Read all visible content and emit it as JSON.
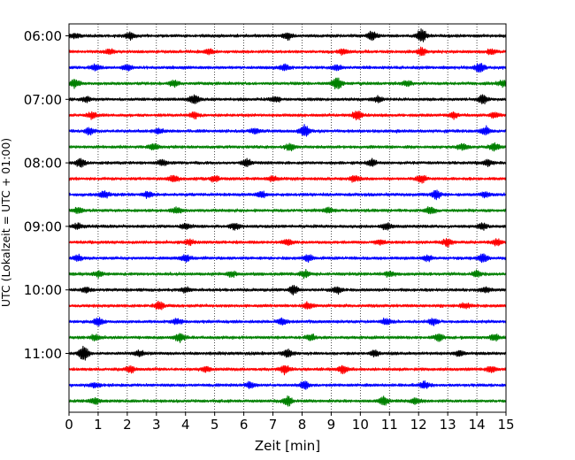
{
  "chart_data": {
    "type": "line",
    "title": "",
    "xlabel": "Zeit  [min]",
    "ylabel": "UTC (Lokalzeit = UTC + 01:00)",
    "xlim": [
      0,
      15
    ],
    "xticks": [
      0,
      1,
      2,
      3,
      4,
      5,
      6,
      7,
      8,
      9,
      10,
      11,
      12,
      13,
      14,
      15
    ],
    "x_grid": "dotted",
    "y_tick_labels": [
      "06:00",
      "07:00",
      "08:00",
      "09:00",
      "10:00",
      "11:00"
    ],
    "trace_interval_min": 15,
    "trace_colors": [
      "#000000",
      "#ff0000",
      "#0000ff",
      "#008000"
    ],
    "traces": [
      {
        "start": "06:00",
        "bursts": [
          [
            0.2,
            0.5
          ],
          [
            2.1,
            0.6
          ],
          [
            7.5,
            0.7
          ],
          [
            10.4,
            0.9
          ],
          [
            12.1,
            1.4
          ]
        ]
      },
      {
        "start": "06:15",
        "bursts": [
          [
            1.4,
            0.5
          ],
          [
            4.8,
            0.5
          ],
          [
            9.4,
            0.6
          ],
          [
            12.1,
            0.7
          ],
          [
            14.5,
            0.5
          ]
        ]
      },
      {
        "start": "06:30",
        "bursts": [
          [
            0.9,
            0.6
          ],
          [
            2.0,
            0.6
          ],
          [
            7.4,
            0.6
          ],
          [
            9.2,
            0.5
          ],
          [
            14.1,
            0.9
          ]
        ]
      },
      {
        "start": "06:45",
        "bursts": [
          [
            0.2,
            0.8
          ],
          [
            3.6,
            0.6
          ],
          [
            9.2,
            1.2
          ],
          [
            11.6,
            0.5
          ],
          [
            14.9,
            0.6
          ]
        ]
      },
      {
        "start": "07:00",
        "bursts": [
          [
            0.6,
            0.5
          ],
          [
            4.3,
            0.8
          ],
          [
            7.1,
            0.5
          ],
          [
            10.6,
            0.5
          ],
          [
            14.2,
            0.8
          ]
        ]
      },
      {
        "start": "07:15",
        "bursts": [
          [
            0.8,
            0.6
          ],
          [
            4.3,
            0.6
          ],
          [
            9.9,
            0.9
          ],
          [
            13.2,
            0.6
          ],
          [
            14.6,
            0.5
          ]
        ]
      },
      {
        "start": "07:30",
        "bursts": [
          [
            0.7,
            0.6
          ],
          [
            3.1,
            0.5
          ],
          [
            6.4,
            0.5
          ],
          [
            8.1,
            1.3
          ],
          [
            14.3,
            0.8
          ]
        ]
      },
      {
        "start": "07:45",
        "bursts": [
          [
            2.9,
            0.6
          ],
          [
            7.6,
            0.8
          ],
          [
            13.5,
            0.6
          ],
          [
            14.6,
            0.7
          ]
        ]
      },
      {
        "start": "08:00",
        "bursts": [
          [
            0.4,
            0.9
          ],
          [
            3.2,
            0.5
          ],
          [
            6.1,
            0.7
          ],
          [
            10.4,
            0.6
          ],
          [
            14.4,
            0.6
          ]
        ]
      },
      {
        "start": "08:15",
        "bursts": [
          [
            3.6,
            0.6
          ],
          [
            5.0,
            0.6
          ],
          [
            7.0,
            0.5
          ],
          [
            9.8,
            0.6
          ],
          [
            12.1,
            0.7
          ]
        ]
      },
      {
        "start": "08:30",
        "bursts": [
          [
            1.2,
            0.7
          ],
          [
            2.7,
            0.6
          ],
          [
            6.6,
            0.6
          ],
          [
            12.6,
            0.9
          ],
          [
            14.3,
            0.5
          ]
        ]
      },
      {
        "start": "08:45",
        "bursts": [
          [
            0.3,
            0.5
          ],
          [
            3.7,
            0.6
          ],
          [
            8.9,
            0.5
          ],
          [
            12.4,
            0.7
          ]
        ]
      },
      {
        "start": "09:00",
        "bursts": [
          [
            0.3,
            0.5
          ],
          [
            4.0,
            0.5
          ],
          [
            5.7,
            0.6
          ],
          [
            10.9,
            0.6
          ],
          [
            14.2,
            0.6
          ]
        ]
      },
      {
        "start": "09:15",
        "bursts": [
          [
            4.1,
            0.5
          ],
          [
            7.5,
            0.6
          ],
          [
            10.7,
            0.5
          ],
          [
            13.0,
            0.8
          ],
          [
            14.7,
            0.6
          ]
        ]
      },
      {
        "start": "09:30",
        "bursts": [
          [
            0.3,
            0.6
          ],
          [
            4.0,
            0.6
          ],
          [
            8.2,
            0.6
          ],
          [
            12.3,
            0.6
          ],
          [
            14.2,
            0.8
          ]
        ]
      },
      {
        "start": "09:45",
        "bursts": [
          [
            1.0,
            0.5
          ],
          [
            5.6,
            0.5
          ],
          [
            8.1,
            0.7
          ],
          [
            11.0,
            0.5
          ],
          [
            14.0,
            0.6
          ]
        ]
      },
      {
        "start": "10:00",
        "bursts": [
          [
            0.6,
            0.5
          ],
          [
            4.0,
            0.5
          ],
          [
            7.7,
            0.9
          ],
          [
            9.2,
            0.7
          ],
          [
            14.3,
            0.6
          ]
        ]
      },
      {
        "start": "10:15",
        "bursts": [
          [
            3.1,
            0.8
          ],
          [
            8.2,
            0.6
          ],
          [
            13.6,
            0.5
          ]
        ]
      },
      {
        "start": "10:30",
        "bursts": [
          [
            1.0,
            0.8
          ],
          [
            3.7,
            0.5
          ],
          [
            7.3,
            0.6
          ],
          [
            10.9,
            0.6
          ],
          [
            12.5,
            0.6
          ]
        ]
      },
      {
        "start": "10:45",
        "bursts": [
          [
            0.9,
            0.6
          ],
          [
            3.8,
            0.8
          ],
          [
            8.3,
            0.6
          ],
          [
            12.7,
            0.7
          ],
          [
            14.6,
            0.6
          ]
        ]
      },
      {
        "start": "11:00",
        "bursts": [
          [
            0.5,
            1.4
          ],
          [
            2.4,
            0.6
          ],
          [
            7.5,
            0.7
          ],
          [
            10.5,
            0.6
          ],
          [
            13.4,
            0.6
          ]
        ]
      },
      {
        "start": "11:15",
        "bursts": [
          [
            2.1,
            0.6
          ],
          [
            4.7,
            0.5
          ],
          [
            7.4,
            0.9
          ],
          [
            9.4,
            0.8
          ],
          [
            14.5,
            0.6
          ]
        ]
      },
      {
        "start": "11:30",
        "bursts": [
          [
            0.9,
            0.5
          ],
          [
            6.2,
            0.5
          ],
          [
            8.1,
            0.7
          ],
          [
            12.2,
            0.7
          ]
        ]
      },
      {
        "start": "11:45",
        "bursts": [
          [
            0.9,
            0.6
          ],
          [
            7.5,
            0.9
          ],
          [
            10.8,
            0.8
          ],
          [
            11.9,
            0.6
          ]
        ]
      }
    ]
  }
}
